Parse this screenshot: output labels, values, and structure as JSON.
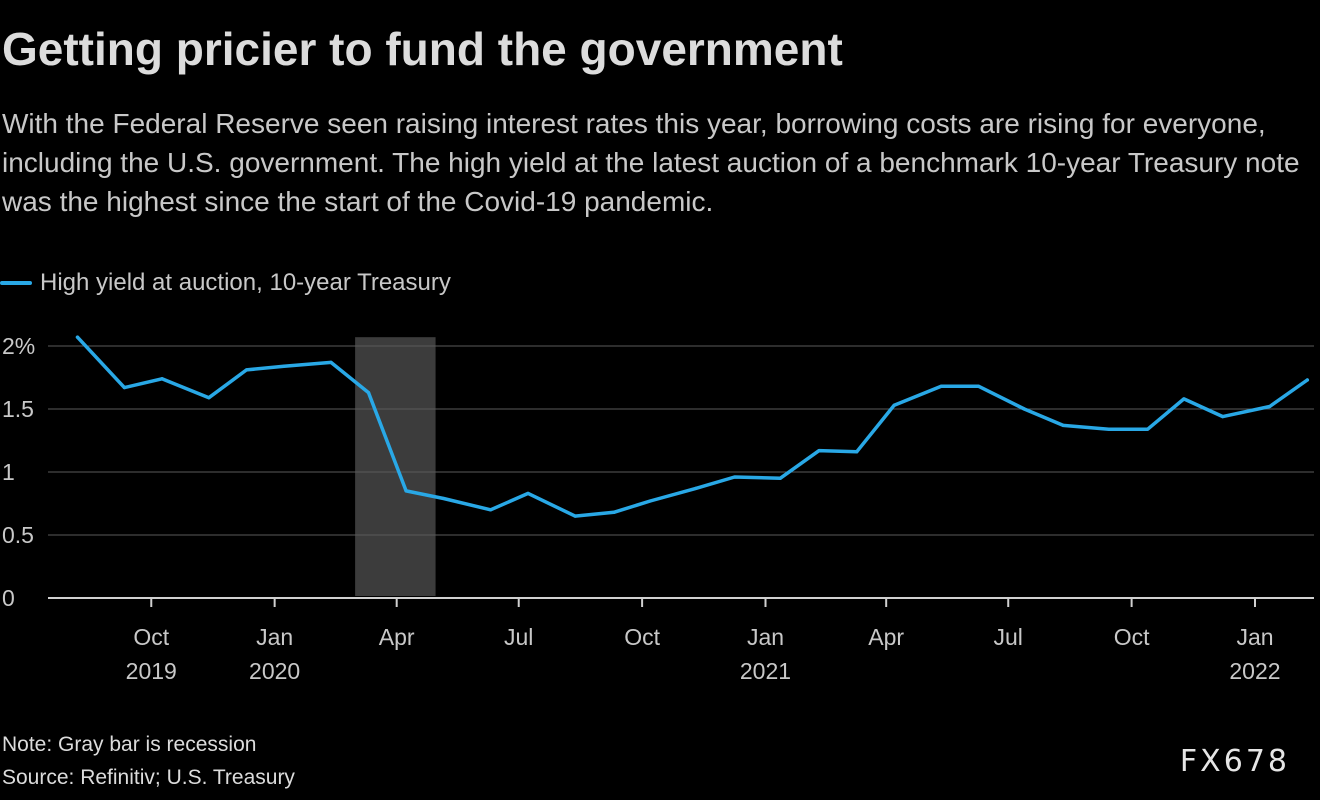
{
  "title": "Getting pricier to fund the government",
  "subtitle": "With the Federal Reserve seen raising interest rates this year, borrowing costs are rising for everyone, including the U.S. government. The high yield at the latest auction of a benchmark 10-year Treasury note was the highest since the start of the Covid-19 pandemic.",
  "colors": {
    "line": "#29a8e6",
    "recession": "#3c3c3c",
    "grid": "#5a5a5a",
    "axis": "#d0d0d0"
  },
  "chart_data": {
    "type": "line",
    "title": "Getting pricier to fund the government",
    "xlabel": "",
    "ylabel": "",
    "ylim": [
      0,
      2
    ],
    "xlim": [
      "2019-07-16",
      "2022-02-14"
    ],
    "grid": true,
    "legend_position": "top-left",
    "series": [
      {
        "name": "High yield at auction, 10-year Treasury",
        "x": [
          "2019-08-07",
          "2019-09-11",
          "2019-10-09",
          "2019-11-13",
          "2019-12-11",
          "2020-01-08",
          "2020-02-12",
          "2020-03-11",
          "2020-04-08",
          "2020-05-06",
          "2020-06-10",
          "2020-07-08",
          "2020-08-12",
          "2020-09-10",
          "2020-10-07",
          "2020-11-10",
          "2020-12-09",
          "2021-01-12",
          "2021-02-10",
          "2021-03-10",
          "2021-04-07",
          "2021-05-12",
          "2021-06-09",
          "2021-07-13",
          "2021-08-11",
          "2021-09-14",
          "2021-10-13",
          "2021-11-09",
          "2021-12-08",
          "2022-01-12",
          "2022-02-09"
        ],
        "values": [
          2.07,
          1.67,
          1.74,
          1.59,
          1.81,
          1.84,
          1.87,
          1.63,
          0.85,
          0.79,
          0.7,
          0.83,
          0.65,
          0.68,
          0.77,
          0.87,
          0.96,
          0.95,
          1.17,
          1.16,
          1.53,
          1.68,
          1.68,
          1.5,
          1.37,
          1.34,
          1.34,
          1.58,
          1.44,
          1.52,
          1.73
        ]
      }
    ],
    "y_ticks": [
      {
        "value": 0,
        "label": "0"
      },
      {
        "value": 0.5,
        "label": "0.5"
      },
      {
        "value": 1,
        "label": "1"
      },
      {
        "value": 1.5,
        "label": "1.5"
      },
      {
        "value": 2,
        "label": "2%"
      }
    ],
    "x_ticks": [
      {
        "date": "2019-10-01",
        "month": "Oct",
        "year": "2019"
      },
      {
        "date": "2020-01-01",
        "month": "Jan",
        "year": "2020"
      },
      {
        "date": "2020-04-01",
        "month": "Apr",
        "year": ""
      },
      {
        "date": "2020-07-01",
        "month": "Jul",
        "year": ""
      },
      {
        "date": "2020-10-01",
        "month": "Oct",
        "year": ""
      },
      {
        "date": "2021-01-01",
        "month": "Jan",
        "year": "2021"
      },
      {
        "date": "2021-04-01",
        "month": "Apr",
        "year": ""
      },
      {
        "date": "2021-07-01",
        "month": "Jul",
        "year": ""
      },
      {
        "date": "2021-10-01",
        "month": "Oct",
        "year": ""
      },
      {
        "date": "2022-01-01",
        "month": "Jan",
        "year": "2022"
      }
    ],
    "recession": {
      "start": "2020-03-01",
      "end": "2020-04-30"
    }
  },
  "notes": {
    "note": "Note: Gray bar is recession",
    "source": "Source: Refinitiv; U.S. Treasury"
  },
  "watermark": "FX678"
}
